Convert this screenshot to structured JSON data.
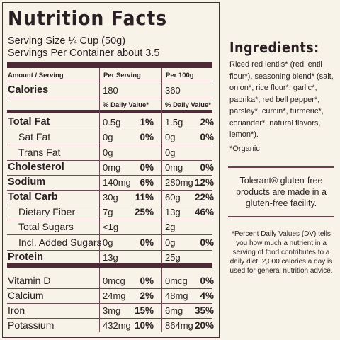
{
  "label": {
    "title": "Nutrition Facts",
    "serving_size": "Serving Size ¼ Cup (50g)",
    "servings_per_container": "Servings Per Container about 3.5",
    "col_amount": "Amount / Serving",
    "col_per_serving": "Per Serving",
    "col_per_100g": "Per 100g",
    "calories_label": "Calories",
    "calories_serving": "180",
    "calories_100g": "360",
    "dv_header_serving": "% Daily Value*",
    "dv_header_100g": "% Daily Value*",
    "rows": [
      {
        "name": "Total Fat",
        "serving": "0.5g",
        "dv": "1%",
        "per100": "1.5g",
        "dv100": "2%"
      },
      {
        "name": "Sat Fat",
        "serving": "0g",
        "dv": "0%",
        "per100": "0g",
        "dv100": "0%"
      },
      {
        "name": "Trans Fat",
        "serving": "0g",
        "dv": "",
        "per100": "0g",
        "dv100": ""
      },
      {
        "name": "Cholesterol",
        "serving": "0mg",
        "dv": "0%",
        "per100": "0mg",
        "dv100": "0%"
      },
      {
        "name": "Sodium",
        "serving": "140mg",
        "dv": "6%",
        "per100": "280mg",
        "dv100": "12%"
      },
      {
        "name": "Total Carb",
        "serving": "30g",
        "dv": "11%",
        "per100": "60g",
        "dv100": "22%"
      },
      {
        "name": "Dietary Fiber",
        "serving": "7g",
        "dv": "25%",
        "per100": "13g",
        "dv100": "46%"
      },
      {
        "name": "Total Sugars",
        "serving": "<1g",
        "dv": "",
        "per100": "2g",
        "dv100": ""
      },
      {
        "name": "Incl. Added Sugars",
        "serving": "0g",
        "dv": "0%",
        "per100": "0g",
        "dv100": "0%"
      },
      {
        "name": "Protein",
        "serving": "13g",
        "dv": "",
        "per100": "25g",
        "dv100": ""
      },
      {
        "name": "Vitamin D",
        "serving": "0mcg",
        "dv": "0%",
        "per100": "0mcg",
        "dv100": "0%"
      },
      {
        "name": "Calcium",
        "serving": "24mg",
        "dv": "2%",
        "per100": "48mg",
        "dv100": "4%"
      },
      {
        "name": "Iron",
        "serving": "3mg",
        "dv": "15%",
        "per100": "6mg",
        "dv100": "35%"
      },
      {
        "name": "Potassium",
        "serving": "432mg",
        "dv": "10%",
        "per100": "864mg",
        "dv100": "20%"
      }
    ]
  },
  "ingredients": {
    "title": "Ingredients:",
    "text": "Riced red lentils* (red lentil flour*), seasoning blend* (salt, onion*, rice flour*, garlic*, paprika*, red bell pepper*, parsley*, cumin*, turmeric*, coriander*, natural flavors, lemon*).",
    "organic_note": "*Organic",
    "gluten_free": "Tolerant® gluten-free products are made in a gluten-free facility.",
    "dv_note": "*Percent Daily Values (DV) tells you how much a nutrient in a serving of food contributes to a daily diet. 2,000 calories a day is used for general nutrition advice."
  },
  "colors": {
    "accent": "#4e2a38",
    "background": "#f8f3e9",
    "text": "#2a1f22"
  }
}
